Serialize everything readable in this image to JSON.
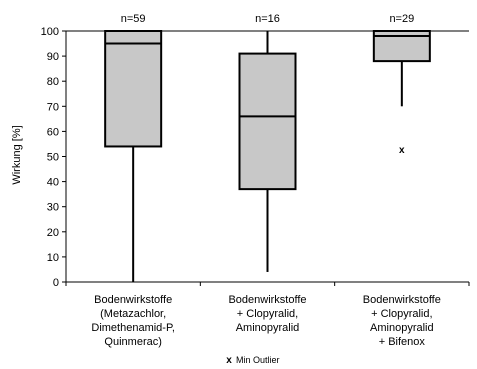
{
  "chart_data": {
    "type": "boxplot",
    "ylabel": "Wirkung [%]",
    "ylim": [
      0,
      100
    ],
    "yticks": [
      "0",
      "10",
      "20",
      "30",
      "40",
      "50",
      "60",
      "70",
      "80",
      "90",
      "100"
    ],
    "groups": [
      {
        "label_lines": [
          "Bodenwirkstoffe",
          "(Metazachlor,",
          "Dimethenamid-P,",
          "Quinmerac)"
        ],
        "count_label": "n=59",
        "min": 0,
        "q1": 54,
        "median": 95,
        "q3": 100,
        "max": 100,
        "outliers": []
      },
      {
        "label_lines": [
          "Bodenwirkstoffe",
          "+ Clopyralid,",
          "Aminopyralid"
        ],
        "count_label": "n=16",
        "min": 4,
        "q1": 37,
        "median": 66,
        "q3": 91,
        "max": 100,
        "outliers": []
      },
      {
        "label_lines": [
          "Bodenwirkstoffe",
          "+ Clopyralid,",
          "Aminopyralid",
          "+ Bifenox"
        ],
        "count_label": "n=29",
        "min": 70,
        "q1": 88,
        "median": 98,
        "q3": 100,
        "max": 100,
        "outliers": [
          53
        ]
      }
    ],
    "legend": {
      "marker": "x",
      "label": "Min Outlier"
    },
    "colors": {
      "box_fill": "#c8c8c8",
      "stroke": "#000000"
    }
  }
}
